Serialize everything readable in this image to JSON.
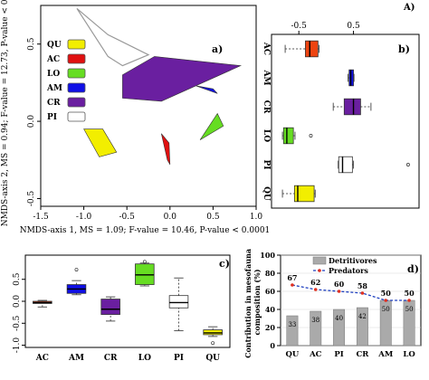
{
  "figure_label": "A)",
  "chart_data": [
    {
      "panel": "a)",
      "type": "scatter",
      "subtype": "nmds-polygons",
      "xlabel": "NMDS-axis 1, MS = 1.09;  F-value = 10.46, P-value < 0.0001",
      "ylabel": "NMDS-axis 2, MS = 0.94;  F-value = 12.73, P-value < 0.0001",
      "xlim": [
        -1.5,
        1.0
      ],
      "ylim": [
        -0.55,
        0.75
      ],
      "xticks": [
        "-1.5",
        "-1.0",
        "-0.5",
        "0.0",
        "0.5",
        "1.0"
      ],
      "yticks": [
        "-0.5",
        "0.0",
        "0.5"
      ],
      "legend_position": "top-left",
      "groups": [
        {
          "name": "QU",
          "color": "#f2ee00",
          "points": [
            [
              -1.0,
              -0.05
            ],
            [
              -0.78,
              -0.05
            ],
            [
              -0.62,
              -0.2
            ],
            [
              -0.82,
              -0.23
            ]
          ]
        },
        {
          "name": "AC",
          "color": "#e01010",
          "points": [
            [
              -0.1,
              -0.08
            ],
            [
              -0.03,
              -0.25
            ],
            [
              0.0,
              -0.28
            ],
            [
              -0.01,
              -0.14
            ]
          ]
        },
        {
          "name": "LO",
          "color": "#66dd22",
          "points": [
            [
              0.35,
              -0.12
            ],
            [
              0.62,
              -0.03
            ],
            [
              0.55,
              0.05
            ]
          ]
        },
        {
          "name": "AM",
          "color": "#1010e6",
          "points": [
            [
              0.3,
              0.23
            ],
            [
              0.55,
              0.18
            ],
            [
              0.5,
              0.21
            ]
          ]
        },
        {
          "name": "CR",
          "color": "#6a1fa0",
          "points": [
            [
              -0.55,
              0.3
            ],
            [
              -0.18,
              0.42
            ],
            [
              0.82,
              0.36
            ],
            [
              -0.1,
              0.13
            ],
            [
              -0.55,
              0.15
            ]
          ]
        },
        {
          "name": "PI",
          "color": "#ffffff",
          "points": [
            [
              -1.08,
              0.73
            ],
            [
              -0.72,
              0.56
            ],
            [
              -0.25,
              0.43
            ],
            [
              -0.55,
              0.36
            ],
            [
              -0.72,
              0.42
            ]
          ]
        }
      ]
    },
    {
      "panel": "b)",
      "type": "boxplot",
      "orientation": "horizontal",
      "categories": [
        "AC",
        "AM",
        "CR",
        "LO",
        "PI",
        "QU"
      ],
      "colors": [
        "#ee4411",
        "#1010e6",
        "#6a1fa0",
        "#66dd22",
        "#ffffff",
        "#f2ee00"
      ],
      "axis_ticks": [
        "-0.5",
        "0.5"
      ],
      "stats": [
        {
          "min": -0.75,
          "q1": -0.38,
          "median": -0.3,
          "q3": -0.15,
          "max": -0.13,
          "outliers": []
        },
        {
          "min": 0.4,
          "q1": 0.42,
          "median": 0.45,
          "q3": 0.5,
          "max": 0.51,
          "outliers": []
        },
        {
          "min": 0.13,
          "q1": 0.33,
          "median": 0.5,
          "q3": 0.63,
          "max": 0.82,
          "outliers": []
        },
        {
          "min": -0.8,
          "q1": -0.78,
          "median": -0.72,
          "q3": -0.6,
          "max": -0.57,
          "outliers": [
            -0.28
          ]
        },
        {
          "min": 0.22,
          "q1": 0.23,
          "median": 0.3,
          "q3": 0.48,
          "max": 0.5,
          "outliers": [
            1.5
          ]
        },
        {
          "min": -0.8,
          "q1": -0.58,
          "median": -0.52,
          "q3": -0.22,
          "max": -0.2,
          "outliers": []
        }
      ]
    },
    {
      "panel": "c)",
      "type": "boxplot",
      "orientation": "vertical",
      "categories": [
        "AC",
        "AM",
        "CR",
        "LO",
        "PI",
        "QU"
      ],
      "colors": [
        "#ee4411",
        "#1010e6",
        "#6a1fa0",
        "#66dd22",
        "#ffffff",
        "#f2ee00"
      ],
      "yticks": [
        "-1.0",
        "-0.5",
        "0.0",
        "0.5"
      ],
      "ylim": [
        -1.05,
        1.05
      ],
      "stats": [
        {
          "min": -0.13,
          "q1": -0.05,
          "median": -0.03,
          "q3": 0.0,
          "max": 0.02,
          "outliers": []
        },
        {
          "min": 0.15,
          "q1": 0.18,
          "median": 0.28,
          "q3": 0.38,
          "max": 0.47,
          "outliers": [
            0.72
          ]
        },
        {
          "min": -0.45,
          "q1": -0.3,
          "median": -0.18,
          "q3": 0.05,
          "max": 0.1,
          "outliers": []
        },
        {
          "min": 0.35,
          "q1": 0.38,
          "median": 0.6,
          "q3": 0.85,
          "max": 0.87,
          "outliers": [
            0.9
          ]
        },
        {
          "min": -0.67,
          "q1": -0.15,
          "median": -0.03,
          "q3": 0.13,
          "max": 0.53,
          "outliers": []
        },
        {
          "min": -0.8,
          "q1": -0.76,
          "median": -0.72,
          "q3": -0.65,
          "max": -0.58,
          "outliers": [
            -0.95
          ]
        }
      ]
    },
    {
      "panel": "d)",
      "type": "bar",
      "categories": [
        "QU",
        "AC",
        "PI",
        "CR",
        "AM",
        "LO"
      ],
      "ylabel": "Contribution in mesofauna composition (%)",
      "ylim": [
        0,
        100
      ],
      "yticks": [
        "0",
        "20",
        "40",
        "60",
        "80",
        "100"
      ],
      "legend_position": "top",
      "series": [
        {
          "name": "Detritivores",
          "type": "bar",
          "color": "#aaaaaa",
          "values": [
            33,
            38,
            40,
            42,
            50,
            50
          ]
        },
        {
          "name": "Predators",
          "type": "line",
          "color": "#1e3fbf",
          "marker_color": "#e03020",
          "values": [
            67,
            62,
            60,
            58,
            50,
            50
          ]
        }
      ]
    }
  ]
}
